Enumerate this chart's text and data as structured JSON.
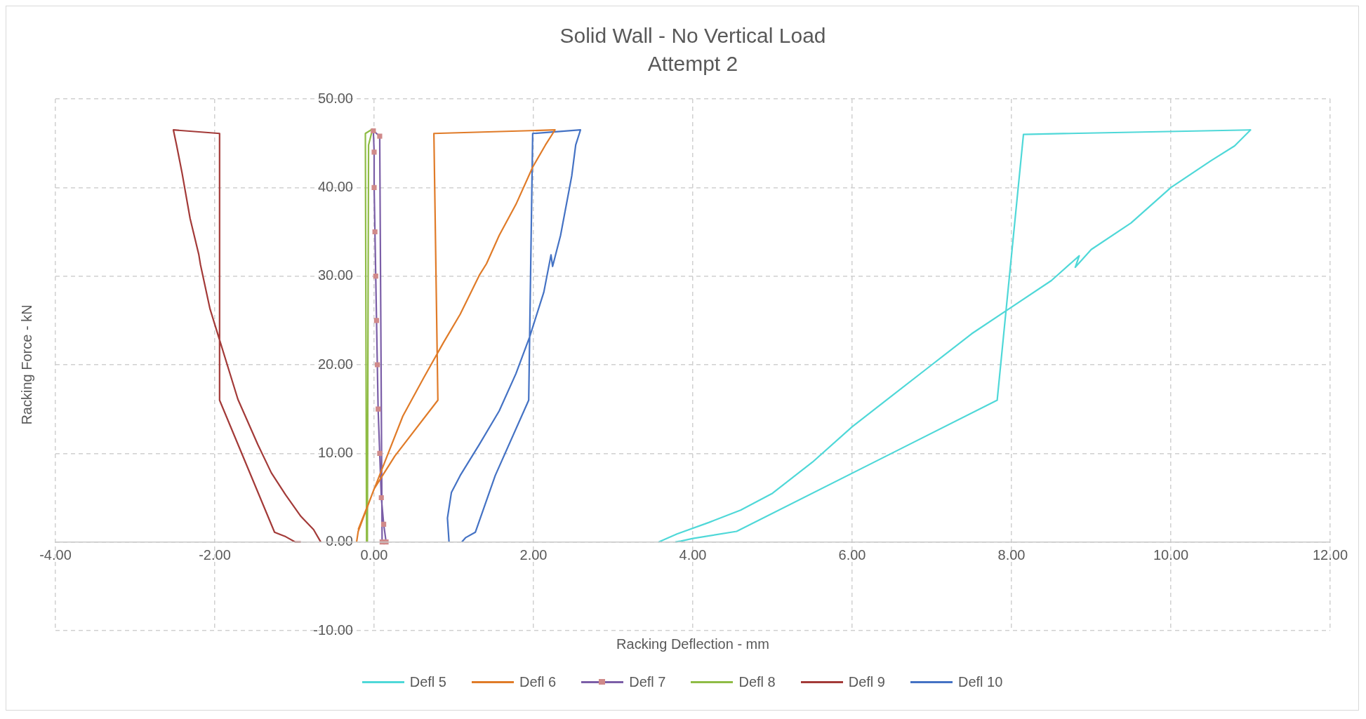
{
  "chart_data": {
    "type": "line",
    "title": "Solid Wall - No Vertical Load",
    "subtitle": "Attempt 2",
    "xlabel": "Racking Deflection - mm",
    "ylabel": "Racking Force - kN",
    "xlim": [
      -4,
      12
    ],
    "xticks": [
      {
        "value": -4,
        "label": "-4.00"
      },
      {
        "value": -2,
        "label": "-2.00"
      },
      {
        "value": 0,
        "label": "0.00"
      },
      {
        "value": 2,
        "label": "2.00"
      },
      {
        "value": 4,
        "label": "4.00"
      },
      {
        "value": 6,
        "label": "6.00"
      },
      {
        "value": 8,
        "label": "8.00"
      },
      {
        "value": 10,
        "label": "10.00"
      },
      {
        "value": 12,
        "label": "12.00"
      }
    ],
    "ylim": [
      -10,
      50
    ],
    "yticks": [
      {
        "value": -10,
        "label": "-10.00"
      },
      {
        "value": 0,
        "label": "0.00"
      },
      {
        "value": 10,
        "label": "10.00"
      },
      {
        "value": 20,
        "label": "20.00"
      },
      {
        "value": 30,
        "label": "30.00"
      },
      {
        "value": 40,
        "label": "40.00"
      },
      {
        "value": 50,
        "label": "50.00"
      }
    ],
    "grid": true,
    "legend": "bottom",
    "marker": "none",
    "line_style": "solid",
    "series": [
      {
        "name": "Defl 5",
        "color": "#4fd8d8",
        "x": [
          3.57,
          3.7,
          3.8,
          4.2,
          4.6,
          5.0,
          5.5,
          6.0,
          6.5,
          7.0,
          7.5,
          8.0,
          8.5,
          8.85,
          8.8,
          9.0,
          9.5,
          10.0,
          10.5,
          10.8,
          11.0,
          8.15,
          7.82,
          4.55,
          4.0,
          3.85,
          3.78
        ],
        "values": [
          0,
          0.5,
          0.9,
          2.2,
          3.6,
          5.5,
          9,
          13,
          16.5,
          20,
          23.5,
          26.5,
          29.5,
          32.3,
          31,
          33,
          36,
          40,
          43,
          44.7,
          46.5,
          46,
          16,
          1.2,
          0.4,
          0.1,
          0
        ]
      },
      {
        "name": "Defl 6",
        "color": "#e07b28",
        "x": [
          -0.22,
          -0.2,
          0.0,
          0.26,
          0.8,
          0.75,
          2.27,
          2.15,
          1.99,
          1.78,
          1.57,
          1.41,
          1.32,
          1.08,
          0.87,
          0.62,
          0.36,
          0.15,
          -0.06,
          -0.2
        ],
        "values": [
          0,
          1.2,
          6,
          9.7,
          16,
          46.1,
          46.5,
          44.8,
          42.3,
          38.1,
          34.6,
          31.4,
          30.1,
          25.7,
          22.5,
          18.5,
          14.2,
          9.4,
          4.6,
          1.4
        ]
      },
      {
        "name": "Defl 7",
        "color": "#7b5ea7",
        "marker": "square",
        "colors": [
          "#d08a8a",
          "#d08a8a",
          "#d08a8a",
          "#d08a8a",
          "#d08a8a",
          "#d08a8a",
          "#d08a8a",
          "#d08a8a",
          "#d08a8a",
          "#d08a8a",
          "#d08a8a",
          "#d08a8a",
          "#d08a8a",
          "#d08a8a"
        ],
        "x": [
          0.1,
          0.07,
          -0.01,
          0.0,
          0.0,
          0.01,
          0.02,
          0.03,
          0.04,
          0.05,
          0.07,
          0.09,
          0.12,
          0.15
        ],
        "values": [
          0,
          45.8,
          46.4,
          44,
          40,
          35,
          30,
          25,
          20,
          15,
          10,
          5,
          2,
          0
        ]
      },
      {
        "name": "Defl 8",
        "color": "#8fbc45",
        "x": [
          -0.095,
          -0.11,
          -0.02,
          -0.07,
          -0.085
        ],
        "values": [
          0,
          46.1,
          46.6,
          44.8,
          0
        ]
      },
      {
        "name": "Defl 9",
        "color": "#a33a38",
        "x": [
          -0.67,
          -0.76,
          -0.92,
          -1.11,
          -1.29,
          -1.46,
          -1.71,
          -1.94,
          -2.06,
          -2.18,
          -2.2,
          -2.31,
          -2.41,
          -2.48,
          -2.52,
          -1.94,
          -1.94,
          -1.25,
          -1.11,
          -0.99,
          -0.92
        ],
        "values": [
          0,
          1.4,
          2.9,
          5.3,
          7.8,
          11,
          16.1,
          22.8,
          26.3,
          31.3,
          32.4,
          36.5,
          41.6,
          44.8,
          46.5,
          46.1,
          16,
          1.1,
          0.6,
          0,
          0
        ]
      },
      {
        "name": "Defl 10",
        "color": "#4472c4",
        "x": [
          0.94,
          0.92,
          0.97,
          1.08,
          1.32,
          1.57,
          1.78,
          1.95,
          2.13,
          2.22,
          2.24,
          2.34,
          2.48,
          2.53,
          2.59,
          1.99,
          1.94,
          1.52,
          1.27,
          1.15,
          1.1
        ],
        "values": [
          0,
          2.7,
          5.6,
          7.5,
          11,
          14.8,
          19,
          23.1,
          28.2,
          32.4,
          31.1,
          34.6,
          41.3,
          44.8,
          46.5,
          46.1,
          16,
          7.5,
          1.1,
          0.5,
          0
        ]
      }
    ]
  }
}
